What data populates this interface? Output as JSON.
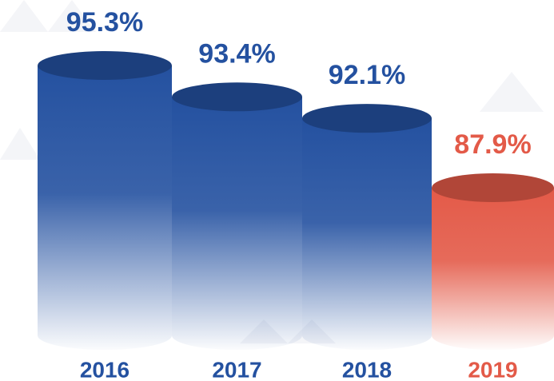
{
  "chart_data": {
    "type": "cylinder",
    "categories": [
      "2016",
      "2017",
      "2018",
      "2019"
    ],
    "values": [
      95.3,
      93.4,
      92.1,
      87.9
    ],
    "value_labels": [
      "95.3%",
      "93.4%",
      "92.1%",
      "87.9%"
    ],
    "colors": [
      "#2451a0",
      "#2451a0",
      "#2451a0",
      "#e35a48"
    ]
  }
}
